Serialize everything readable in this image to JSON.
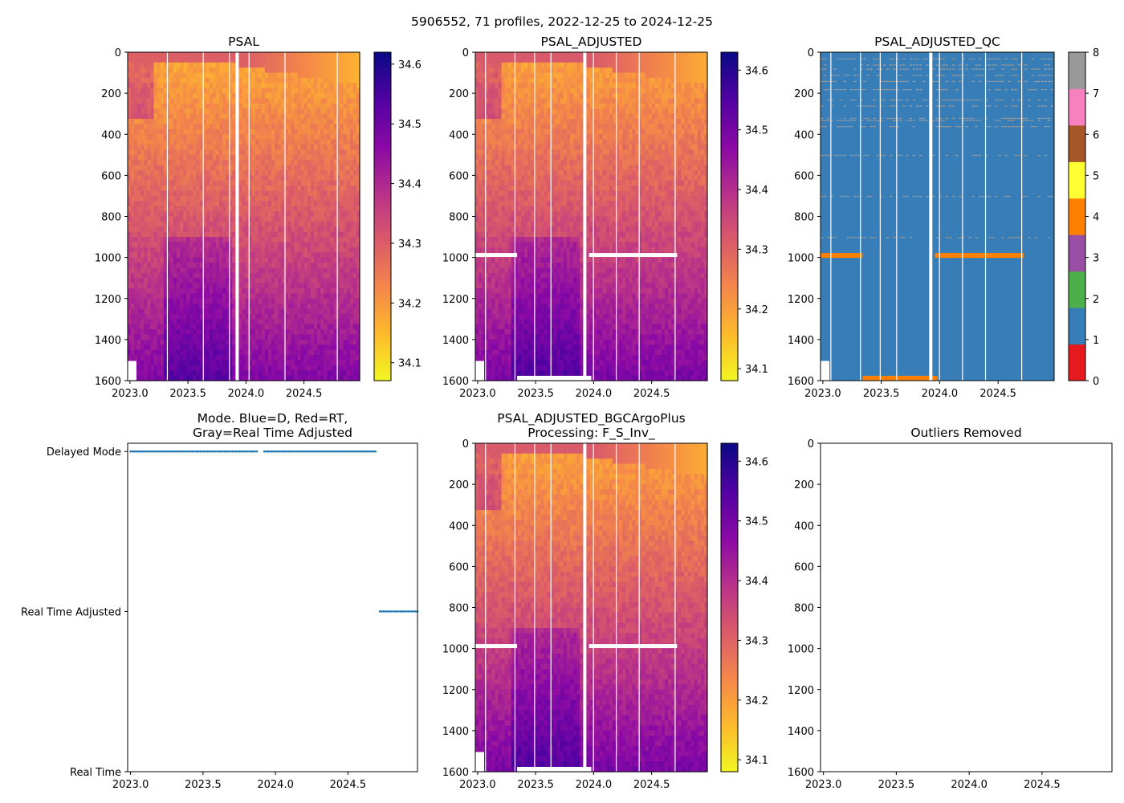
{
  "figure": {
    "title": "5906552, 71 profiles, 2022-12-25 to 2024-12-25"
  },
  "colors": {
    "axis": "#000000",
    "mode_dots": "#1f77b4",
    "gap": "#ffffff"
  },
  "chart_data": [
    {
      "id": "psal",
      "type": "heatmap",
      "title": "PSAL",
      "xlabel": "",
      "ylabel": "",
      "xlim": [
        2022.98,
        2024.98
      ],
      "ylim": [
        1600,
        0
      ],
      "x_ticks": [
        "2023.0",
        "2023.5",
        "2024.0",
        "2024.5"
      ],
      "y_ticks": [
        "0",
        "200",
        "400",
        "600",
        "800",
        "1000",
        "1200",
        "1400",
        "1600"
      ],
      "colormap": "plasma_r",
      "colorbar": {
        "range": [
          34.07,
          34.62
        ],
        "ticks": [
          "34.1",
          "34.2",
          "34.3",
          "34.4",
          "34.5",
          "34.6"
        ]
      },
      "surface_salinity": [
        34.32,
        34.22
      ],
      "deep_salinity": 34.52,
      "white_gaps_years": [
        2023.35,
        2023.58,
        2023.91
      ]
    },
    {
      "id": "psal_adj",
      "type": "heatmap",
      "title": "PSAL_ADJUSTED",
      "xlabel": "",
      "ylabel": "",
      "xlim": [
        2022.98,
        2024.98
      ],
      "ylim": [
        1600,
        0
      ],
      "x_ticks": [
        "2023.0",
        "2023.5",
        "2024.0",
        "2024.5"
      ],
      "y_ticks": [
        "0",
        "200",
        "400",
        "600",
        "800",
        "1000",
        "1200",
        "1400",
        "1600"
      ],
      "colormap": "plasma_r",
      "colorbar": {
        "range": [
          34.08,
          34.63
        ],
        "ticks": [
          "34.1",
          "34.2",
          "34.3",
          "34.4",
          "34.5",
          "34.6"
        ]
      },
      "missing_band_depth": 990,
      "white_gaps_years": [
        2023.52,
        2023.91,
        2024.23
      ]
    },
    {
      "id": "psal_qc",
      "type": "heatmap",
      "title": "PSAL_ADJUSTED_QC",
      "xlabel": "",
      "ylabel": "",
      "xlim": [
        2022.98,
        2024.98
      ],
      "ylim": [
        1600,
        0
      ],
      "x_ticks": [
        "2023.0",
        "2023.5",
        "2024.0",
        "2024.5"
      ],
      "y_ticks": [
        "0",
        "200",
        "400",
        "600",
        "800",
        "1000",
        "1200",
        "1400",
        "1600"
      ],
      "qc_flags": [
        {
          "flag": 0,
          "color": "#e41a1c"
        },
        {
          "flag": 1,
          "color": "#377eb8"
        },
        {
          "flag": 2,
          "color": "#4daf4a"
        },
        {
          "flag": 3,
          "color": "#984ea3"
        },
        {
          "flag": 4,
          "color": "#ff7f00"
        },
        {
          "flag": 5,
          "color": "#ffff33"
        },
        {
          "flag": 6,
          "color": "#a65628"
        },
        {
          "flag": 7,
          "color": "#f781bf"
        },
        {
          "flag": 8,
          "color": "#999999"
        }
      ],
      "colorbar": {
        "range": [
          0,
          8
        ],
        "ticks": [
          "0",
          "1",
          "2",
          "3",
          "4",
          "5",
          "6",
          "7",
          "8"
        ]
      },
      "dominant_flag": 1,
      "flag4_band_depth": 990,
      "flag8_depths": [
        30,
        60,
        80,
        110,
        140,
        180,
        230,
        260,
        320,
        330,
        360,
        500,
        700,
        900
      ]
    },
    {
      "id": "mode",
      "type": "scatter",
      "title_lines": [
        "Mode. Blue=D, Red=RT,",
        "Gray=Real Time Adjusted"
      ],
      "xlabel": "",
      "ylabel": "",
      "xlim": [
        2022.98,
        2024.98
      ],
      "x_ticks": [
        "2023.0",
        "2023.5",
        "2024.0",
        "2024.5"
      ],
      "y_ticks": [
        "Real Time",
        "Real Time Adjusted",
        "Delayed Mode"
      ],
      "series": [
        {
          "name": "Delayed Mode",
          "y": 2,
          "x_start": 2023.0,
          "x_end": 2024.7,
          "gap": [
            2023.88,
            2023.91
          ]
        },
        {
          "name": "Real Time Adjusted",
          "y": 1,
          "x_start": 2024.72,
          "x_end": 2024.98,
          "gap": null
        }
      ]
    },
    {
      "id": "psal_bgc",
      "type": "heatmap",
      "title_lines": [
        "PSAL_ADJUSTED_BGCArgoPlus",
        "Processing: F_S_Inv_"
      ],
      "xlabel": "",
      "ylabel": "",
      "xlim": [
        2022.98,
        2024.98
      ],
      "ylim": [
        1600,
        0
      ],
      "x_ticks": [
        "2023.0",
        "2023.5",
        "2024.0",
        "2024.5"
      ],
      "y_ticks": [
        "0",
        "200",
        "400",
        "600",
        "800",
        "1000",
        "1200",
        "1400",
        "1600"
      ],
      "colormap": "plasma_r",
      "colorbar": {
        "range": [
          34.08,
          34.63
        ],
        "ticks": [
          "34.1",
          "34.2",
          "34.3",
          "34.4",
          "34.5",
          "34.6"
        ]
      },
      "missing_band_depth": 990
    },
    {
      "id": "outliers",
      "type": "scatter",
      "title": "Outliers Removed",
      "xlabel": "",
      "ylabel": "",
      "xlim": [
        2022.98,
        2024.98
      ],
      "ylim": [
        1600,
        0
      ],
      "x_ticks": [
        "2023.0",
        "2023.5",
        "2024.0",
        "2024.5"
      ],
      "y_ticks": [
        "0",
        "200",
        "400",
        "600",
        "800",
        "1000",
        "1200",
        "1400",
        "1600"
      ],
      "points": []
    }
  ]
}
